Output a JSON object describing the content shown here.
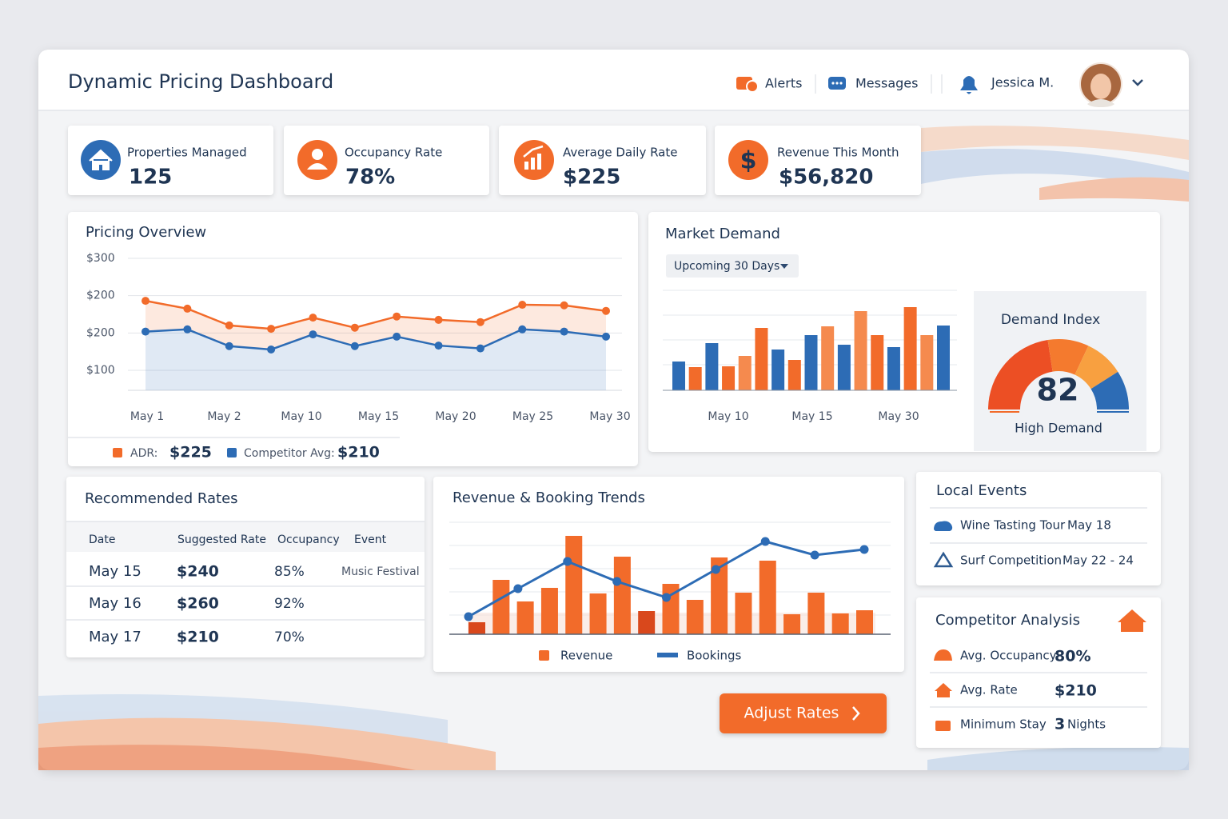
{
  "header": {
    "title": "Dynamic Pricing Dashboard",
    "nav": [
      "Alerts",
      "Messages"
    ],
    "user": "Jessica M."
  },
  "kpis": [
    {
      "label": "Properties Managed",
      "value": "125"
    },
    {
      "label": "Occupancy Rate",
      "value": "78%"
    },
    {
      "label": "Average Daily Rate",
      "value": "$225"
    },
    {
      "label": "Revenue This Month",
      "value": "$56,820"
    }
  ],
  "chart_data": [
    {
      "type": "line",
      "title": "Pricing Overview",
      "y_labels": [
        "$300",
        "$200",
        "$200",
        "$100"
      ],
      "x_labels": [
        "May 1",
        "May 2",
        "May 10",
        "May 15",
        "May 20",
        "May 25",
        "May 30"
      ],
      "ylim": [
        64,
        300
      ],
      "series": [
        {
          "name": "ADR:",
          "summary": "$225",
          "color": "#f26b2a",
          "values": [
            224,
            210,
            180,
            174,
            194,
            176,
            196,
            190,
            186,
            217,
            216,
            206
          ]
        },
        {
          "name": "Competitor Avg:",
          "summary": "$210",
          "color": "#2d6cb5",
          "values": [
            169,
            173,
            143,
            137,
            164,
            143,
            160,
            144,
            139,
            173,
            169,
            160
          ]
        }
      ]
    },
    {
      "type": "bar",
      "title": "Market Demand",
      "filter": "Upcoming 30 Days",
      "x_labels": [
        "May 10",
        "May 15",
        "May 30"
      ],
      "ylim": [
        0,
        125
      ],
      "values": [
        36,
        29,
        59,
        30,
        43,
        78,
        51,
        38,
        69,
        80,
        57,
        99,
        69,
        54,
        104,
        69,
        81
      ],
      "colors": [
        "#2d6cb5",
        "#f26b2a",
        "#2d6cb5",
        "#f26b2a",
        "#f58a4e",
        "#f26b2a",
        "#2d6cb5",
        "#f26b2a",
        "#2d6cb5",
        "#f58a4e",
        "#2d6cb5",
        "#f58a4e",
        "#f26b2a",
        "#2d6cb5",
        "#f26b2a",
        "#f58a4e",
        "#2d6cb5"
      ]
    },
    {
      "type": "gauge",
      "title": "Demand Index",
      "value": 82,
      "ylim": [
        0,
        100
      ],
      "label": "High Demand"
    },
    {
      "type": "combo",
      "title": "Revenue & Booking Trends",
      "ylim": [
        0,
        140
      ],
      "series": [
        {
          "name": "Revenue",
          "type": "bar",
          "color": "#f26b2a",
          "colors": [
            "#d9481c",
            "#f26b2a",
            "#f26b2a",
            "#f26b2a",
            "#f26b2a",
            "#f26b2a",
            "#f26b2a",
            "#d9481c",
            "#f26b2a",
            "#f26b2a",
            "#f26b2a",
            "#f26b2a",
            "#f26b2a",
            "#f26b2a",
            "#f26b2a",
            "#f26b2a",
            "#f26b2a"
          ],
          "values": [
            15,
            68,
            41,
            58,
            123,
            51,
            97,
            29,
            63,
            43,
            96,
            52,
            92,
            25,
            52,
            26,
            30
          ]
        },
        {
          "name": "Bookings",
          "type": "line",
          "color": "#2d6cb5",
          "values": [
            22,
            57,
            91,
            66,
            46,
            81,
            116,
            99,
            106
          ]
        }
      ]
    }
  ],
  "recommended_rates": {
    "title": "Recommended Rates",
    "columns": [
      "Date",
      "Suggested Rate",
      "Occupancy",
      "Event"
    ],
    "rows": [
      [
        "May 15",
        "$240",
        "85%",
        "Music Festival"
      ],
      [
        "May 16",
        "$260",
        "92%"
      ],
      [
        "May 17",
        "$210",
        "70%"
      ]
    ]
  },
  "local_events": {
    "title": "Local Events",
    "items": [
      {
        "name": "Wine Tasting Tour",
        "date": "May 18"
      },
      {
        "name": "Surf Competition",
        "date": "May 22 - 24"
      }
    ]
  },
  "competitor_analysis": {
    "title": "Competitor Analysis",
    "items": [
      {
        "label": "Avg. Occupancy",
        "value": "80%"
      },
      {
        "label": "Avg. Rate",
        "value": "$210"
      },
      {
        "label": "Minimum Stay",
        "value": "3",
        "unit": "Nights"
      }
    ]
  },
  "button": "Adjust Rates"
}
